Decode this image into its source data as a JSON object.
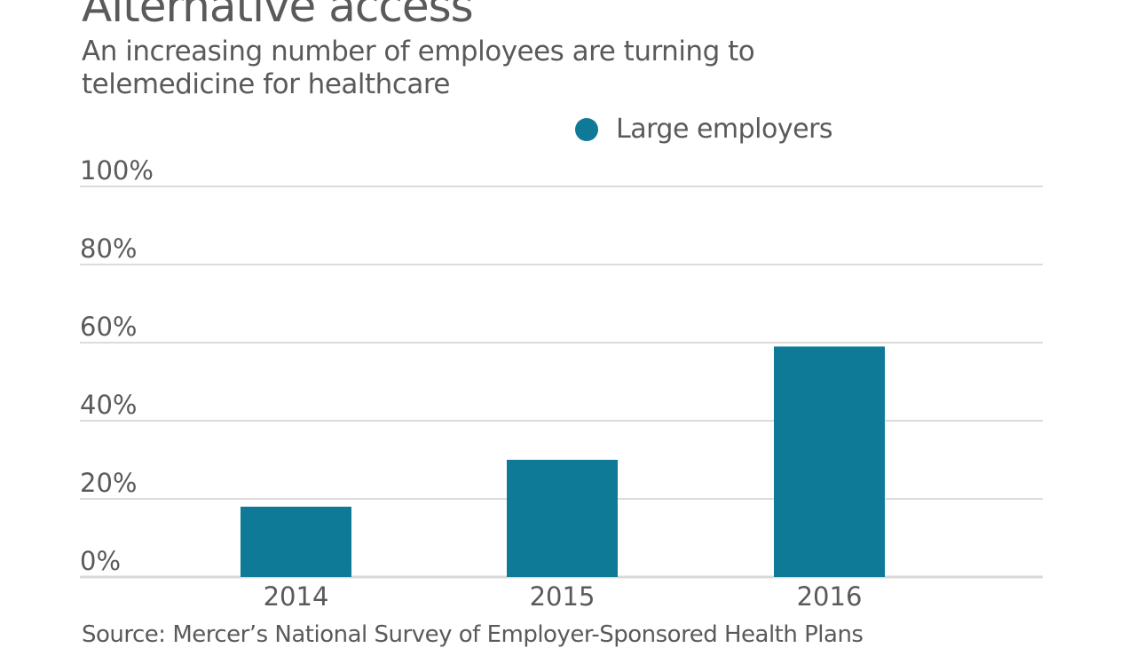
{
  "chart_data": {
    "type": "bar",
    "title": "Alternative access",
    "subtitle": "An increasing number of employees are turning to telemedicine for healthcare",
    "categories": [
      "2014",
      "2015",
      "2016"
    ],
    "series": [
      {
        "name": "Large employers",
        "values": [
          18,
          30,
          59
        ],
        "color": "#0e7a98"
      }
    ],
    "yticks": [
      "0%",
      "20%",
      "40%",
      "60%",
      "80%",
      "100%"
    ],
    "ylim": [
      0,
      100
    ],
    "xlabel": "",
    "ylabel": "",
    "grid": true,
    "legend": "top-right",
    "source": "Source: Mercer’s National Survey of Employer-Sponsored Health Plans"
  }
}
